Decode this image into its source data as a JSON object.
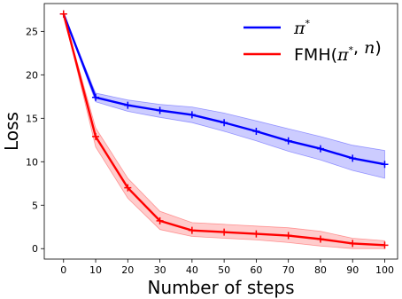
{
  "chart_data": {
    "type": "line",
    "title": "",
    "xlabel": "Number of steps",
    "ylabel": "Loss",
    "x": [
      0,
      10,
      20,
      30,
      40,
      50,
      60,
      70,
      80,
      90,
      100
    ],
    "xticks": [
      0,
      10,
      20,
      30,
      40,
      50,
      60,
      70,
      80,
      90,
      100
    ],
    "yticks": [
      0,
      5,
      10,
      15,
      20,
      25
    ],
    "xlim": [
      -6,
      104
    ],
    "ylim": [
      -1.2,
      28.2
    ],
    "grid": false,
    "legend": "top-right",
    "marker": "+",
    "series": [
      {
        "name": "π*",
        "label_parts": [
          {
            "text": "π",
            "italic": true
          },
          {
            "text": "*",
            "sup": true
          }
        ],
        "color": "#0000ff",
        "values": [
          27.0,
          17.4,
          16.5,
          15.9,
          15.4,
          14.5,
          13.5,
          12.4,
          11.5,
          10.4,
          9.7
        ],
        "band_upper": [
          27.0,
          17.9,
          17.1,
          16.6,
          16.3,
          15.6,
          14.7,
          13.8,
          12.9,
          11.9,
          11.3
        ],
        "band_lower": [
          27.0,
          16.9,
          15.8,
          15.1,
          14.5,
          13.5,
          12.4,
          11.2,
          10.2,
          9.0,
          8.1
        ]
      },
      {
        "name": "FMH(π*, n)",
        "label_parts": [
          {
            "text": "FMH(",
            "italic": false
          },
          {
            "text": "π",
            "italic": true
          },
          {
            "text": "*",
            "sup": true
          },
          {
            "text": ", ",
            "italic": false
          },
          {
            "text": "n",
            "italic": true
          },
          {
            "text": ")",
            "italic": false
          }
        ],
        "color": "#ff0000",
        "values": [
          27.0,
          12.9,
          7.0,
          3.2,
          2.1,
          1.9,
          1.7,
          1.5,
          1.1,
          0.6,
          0.4
        ],
        "band_upper": [
          27.0,
          13.9,
          8.1,
          4.3,
          3.0,
          2.8,
          2.6,
          2.4,
          2.0,
          1.2,
          0.9
        ],
        "band_lower": [
          27.0,
          11.7,
          5.8,
          2.2,
          1.4,
          1.2,
          1.0,
          0.7,
          0.3,
          0.0,
          0.0
        ]
      }
    ]
  }
}
